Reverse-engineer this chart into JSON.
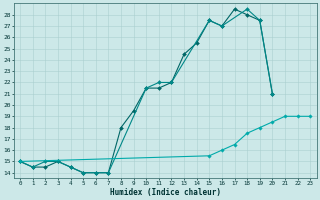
{
  "xlabel": "Humidex (Indice chaleur)",
  "bg_color": "#cce8e8",
  "grid_color": "#aacfcf",
  "line1_color": "#006666",
  "line2_color": "#008888",
  "line3_color": "#00aaaa",
  "ylim": [
    13.5,
    29.0
  ],
  "xlim": [
    -0.5,
    23.5
  ],
  "yticks": [
    14,
    15,
    16,
    17,
    18,
    19,
    20,
    21,
    22,
    23,
    24,
    25,
    26,
    27,
    28
  ],
  "xticks": [
    0,
    1,
    2,
    3,
    4,
    5,
    6,
    7,
    8,
    9,
    10,
    11,
    12,
    13,
    14,
    15,
    16,
    17,
    18,
    19,
    20,
    21,
    22,
    23
  ],
  "line1_x": [
    0,
    1,
    2,
    3,
    4,
    5,
    6,
    7,
    8,
    9,
    10,
    11,
    12,
    13,
    14,
    15,
    16,
    17,
    18,
    19,
    20
  ],
  "line1_y": [
    15.0,
    14.5,
    14.5,
    15.0,
    14.5,
    14.0,
    14.0,
    14.0,
    18.0,
    19.5,
    21.5,
    21.5,
    22.0,
    24.5,
    25.5,
    27.5,
    27.0,
    28.5,
    28.0,
    27.5,
    21.0
  ],
  "line2_x": [
    0,
    1,
    2,
    3,
    4,
    5,
    6,
    7,
    10,
    11,
    12,
    15,
    16,
    18,
    19,
    20
  ],
  "line2_y": [
    15.0,
    14.5,
    15.0,
    15.0,
    14.5,
    14.0,
    14.0,
    14.0,
    21.5,
    22.0,
    22.0,
    27.5,
    27.0,
    28.5,
    27.5,
    21.0
  ],
  "line3_x": [
    0,
    15,
    16,
    17,
    18,
    19,
    20,
    21,
    22,
    23
  ],
  "line3_y": [
    15.0,
    15.5,
    16.0,
    16.5,
    17.5,
    18.0,
    18.5,
    19.0,
    19.0,
    19.0
  ]
}
